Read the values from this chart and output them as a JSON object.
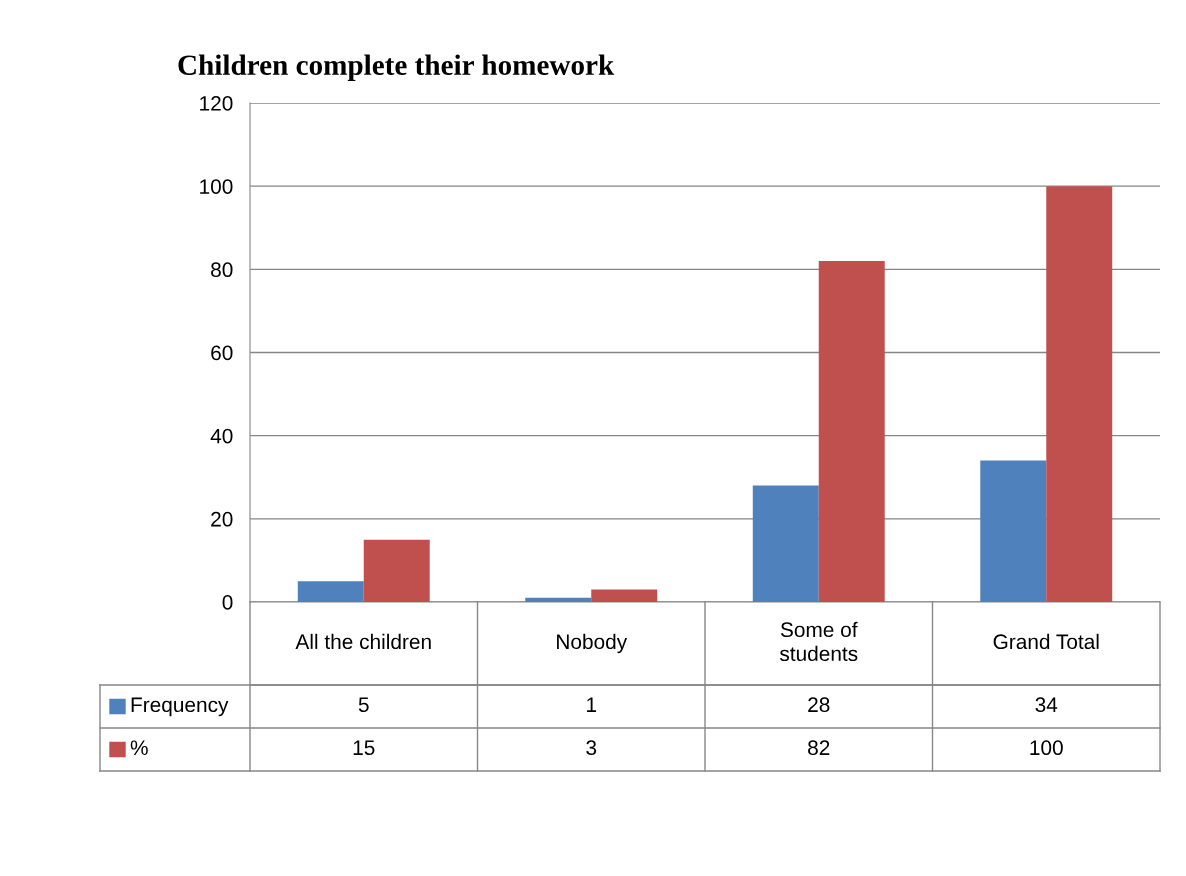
{
  "chart_data": {
    "type": "bar",
    "title": "Children complete their homework",
    "categories": [
      "All the children",
      "Nobody",
      "Some of\nstudents",
      "Grand Total"
    ],
    "series": [
      {
        "name": "Frequency",
        "color": "#4f81bd",
        "values": [
          5,
          1,
          28,
          34
        ]
      },
      {
        "name": "%",
        "color": "#c0504d",
        "values": [
          15,
          3,
          82,
          100
        ]
      }
    ],
    "ylim": [
      0,
      120
    ],
    "yticks": [
      0,
      20,
      40,
      60,
      80,
      100,
      120
    ],
    "grid": "y",
    "legend": "bottom",
    "data_labels": true,
    "tick_labels": "y"
  }
}
